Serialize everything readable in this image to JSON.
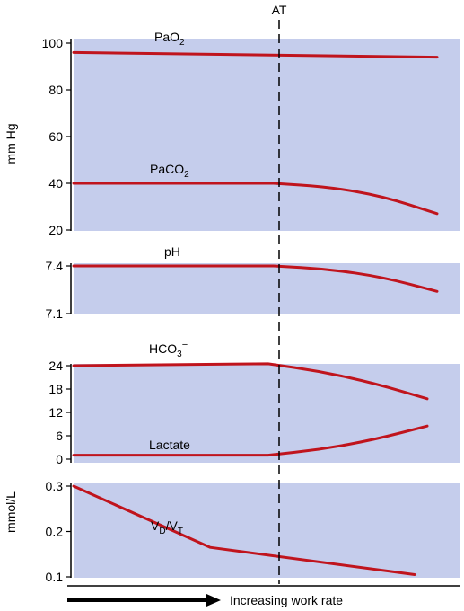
{
  "chart_data": {
    "type": "line",
    "xlabel": "Increasing work rate",
    "marker_label": "AT",
    "colors": {
      "panel": "#c5cdec",
      "line": "#c0141d",
      "axis": "#000000"
    },
    "panels": [
      {
        "id": "pressure",
        "ylabel": "mm Hg",
        "ylim": [
          20,
          100
        ],
        "yticks": [
          "20",
          "40",
          "60",
          "80",
          "100"
        ],
        "series": [
          {
            "label_base": "PaO",
            "label_sub": "2",
            "label_anchor": [
              0.0,
              100
            ],
            "x": [
              0.0,
              1.0
            ],
            "y": [
              96,
              94
            ]
          },
          {
            "label_base": "PaCO",
            "label_sub": "2",
            "label_anchor": [
              0.0,
              46
            ],
            "x": [
              0.0,
              0.55,
              0.7,
              0.85,
              1.0
            ],
            "y": [
              40,
              40,
              38.5,
              34.5,
              27
            ]
          }
        ]
      },
      {
        "id": "ph",
        "ylabel": "",
        "ylim": [
          7.1,
          7.4
        ],
        "yticks": [
          "7.1",
          "7.4"
        ],
        "series": [
          {
            "label_base": "pH",
            "label_sub": "",
            "label_anchor": [
              0.0,
              7.44
            ],
            "x": [
              0.0,
              0.55,
              0.7,
              0.85,
              1.0
            ],
            "y": [
              7.4,
              7.4,
              7.38,
              7.33,
              7.24
            ]
          }
        ]
      },
      {
        "id": "acid-base",
        "ylabel": "",
        "ylim": [
          0,
          24
        ],
        "yticks": [
          "0",
          "6",
          "12",
          "18",
          "24"
        ],
        "series": [
          {
            "label_base": "HCO",
            "label_sub": "3",
            "label_sup": "−",
            "label_anchor": [
              0.0,
              26
            ],
            "x": [
              0.0,
              0.55,
              0.7,
              0.85,
              1.0
            ],
            "y": [
              24,
              24.5,
              22.5,
              19.5,
              15.5
            ]
          },
          {
            "label_base": "Lactate",
            "label_sub": "",
            "label_anchor": [
              0.0,
              3
            ],
            "x": [
              0.0,
              0.55,
              0.7,
              0.85,
              1.0
            ],
            "y": [
              1,
              1,
              2.5,
              5.0,
              8.5
            ]
          }
        ]
      },
      {
        "id": "dead-space",
        "ylabel": "mmol/L",
        "ylim": [
          0.1,
          0.3
        ],
        "yticks": [
          "0.1",
          "0.2",
          "0.3"
        ],
        "series": [
          {
            "label_base": "V",
            "label_sub": "D",
            "label_slash": "/V",
            "label_sub2": "T",
            "label_anchor": [
              0.0,
              0.24
            ],
            "x": [
              0.0,
              0.4,
              1.0
            ],
            "y": [
              0.3,
              0.165,
              0.105
            ]
          }
        ]
      }
    ]
  }
}
